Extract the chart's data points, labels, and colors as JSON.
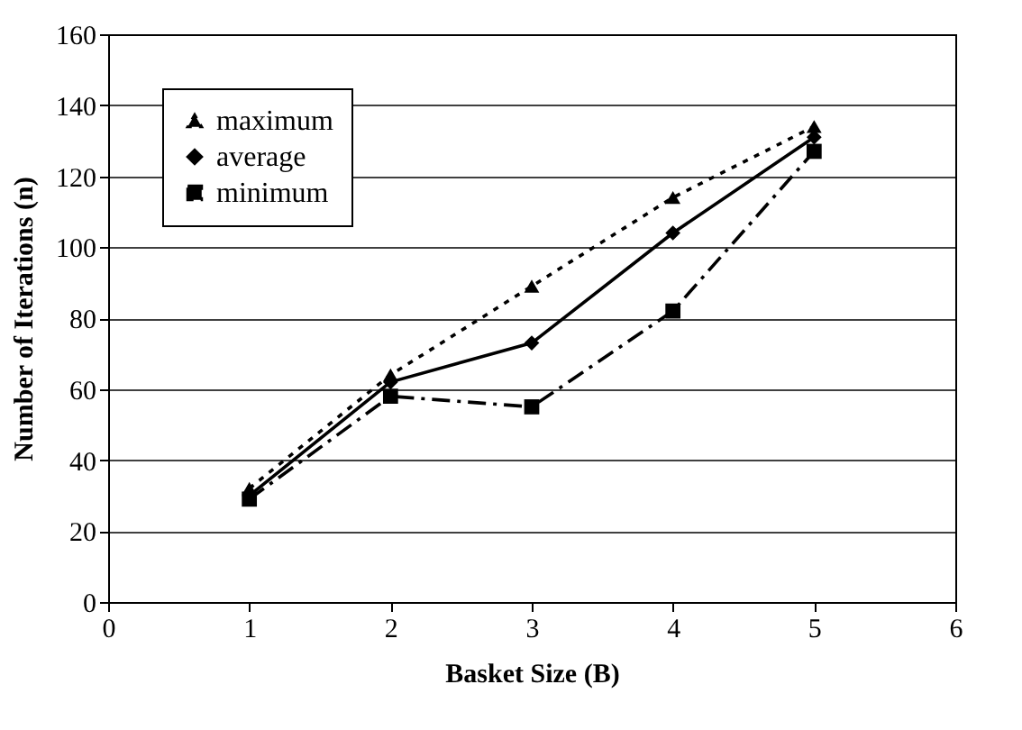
{
  "chart_data": {
    "type": "line",
    "xlabel": "Basket Size (B)",
    "ylabel": "Number of Iterations (n)",
    "x": [
      1,
      2,
      3,
      4,
      5
    ],
    "series": [
      {
        "name": "maximum",
        "color": "#000000",
        "marker": "triangle",
        "line_style": "dotted",
        "values": [
          32,
          64,
          89,
          114,
          134
        ]
      },
      {
        "name": "average",
        "color": "#000000",
        "marker": "diamond",
        "line_style": "solid",
        "values": [
          30,
          62,
          73,
          104,
          131
        ]
      },
      {
        "name": "minimum",
        "color": "#000000",
        "marker": "square",
        "line_style": "dashed",
        "values": [
          29,
          58,
          55,
          82,
          127
        ]
      }
    ],
    "xlim": [
      0,
      6
    ],
    "xticks": [
      0,
      1,
      2,
      3,
      4,
      5,
      6
    ],
    "ylim": [
      0,
      160
    ],
    "yticks": [
      0,
      20,
      40,
      60,
      80,
      100,
      120,
      140,
      160
    ],
    "grid": "y",
    "legend": "top left"
  }
}
